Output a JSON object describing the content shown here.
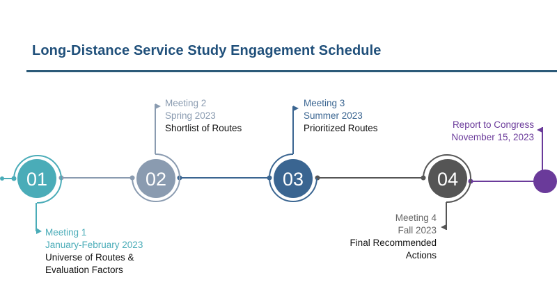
{
  "title": "Long-Distance Service Study Engagement Schedule",
  "milestones": [
    {
      "number": "01",
      "meeting": "Meeting 1",
      "date": "January-February 2023",
      "desc": [
        "Universe of Routes &",
        "Evaluation Factors"
      ],
      "color": "#4aacb8"
    },
    {
      "number": "02",
      "meeting": "Meeting 2",
      "date": "Spring 2023",
      "desc": [
        "Shortlist of Routes"
      ],
      "color": "#8a9bb0"
    },
    {
      "number": "03",
      "meeting": "Meeting 3",
      "date": "Summer 2023",
      "desc": [
        "Prioritized Routes"
      ],
      "color": "#3a6591"
    },
    {
      "number": "04",
      "meeting": "Meeting 4",
      "date": "Fall 2023",
      "desc": [
        "Final Recommended",
        "Actions"
      ],
      "color": "#555555"
    }
  ],
  "final": {
    "label": "Report to Congress",
    "date": "November 15, 2023",
    "color": "#6a3a9a"
  }
}
